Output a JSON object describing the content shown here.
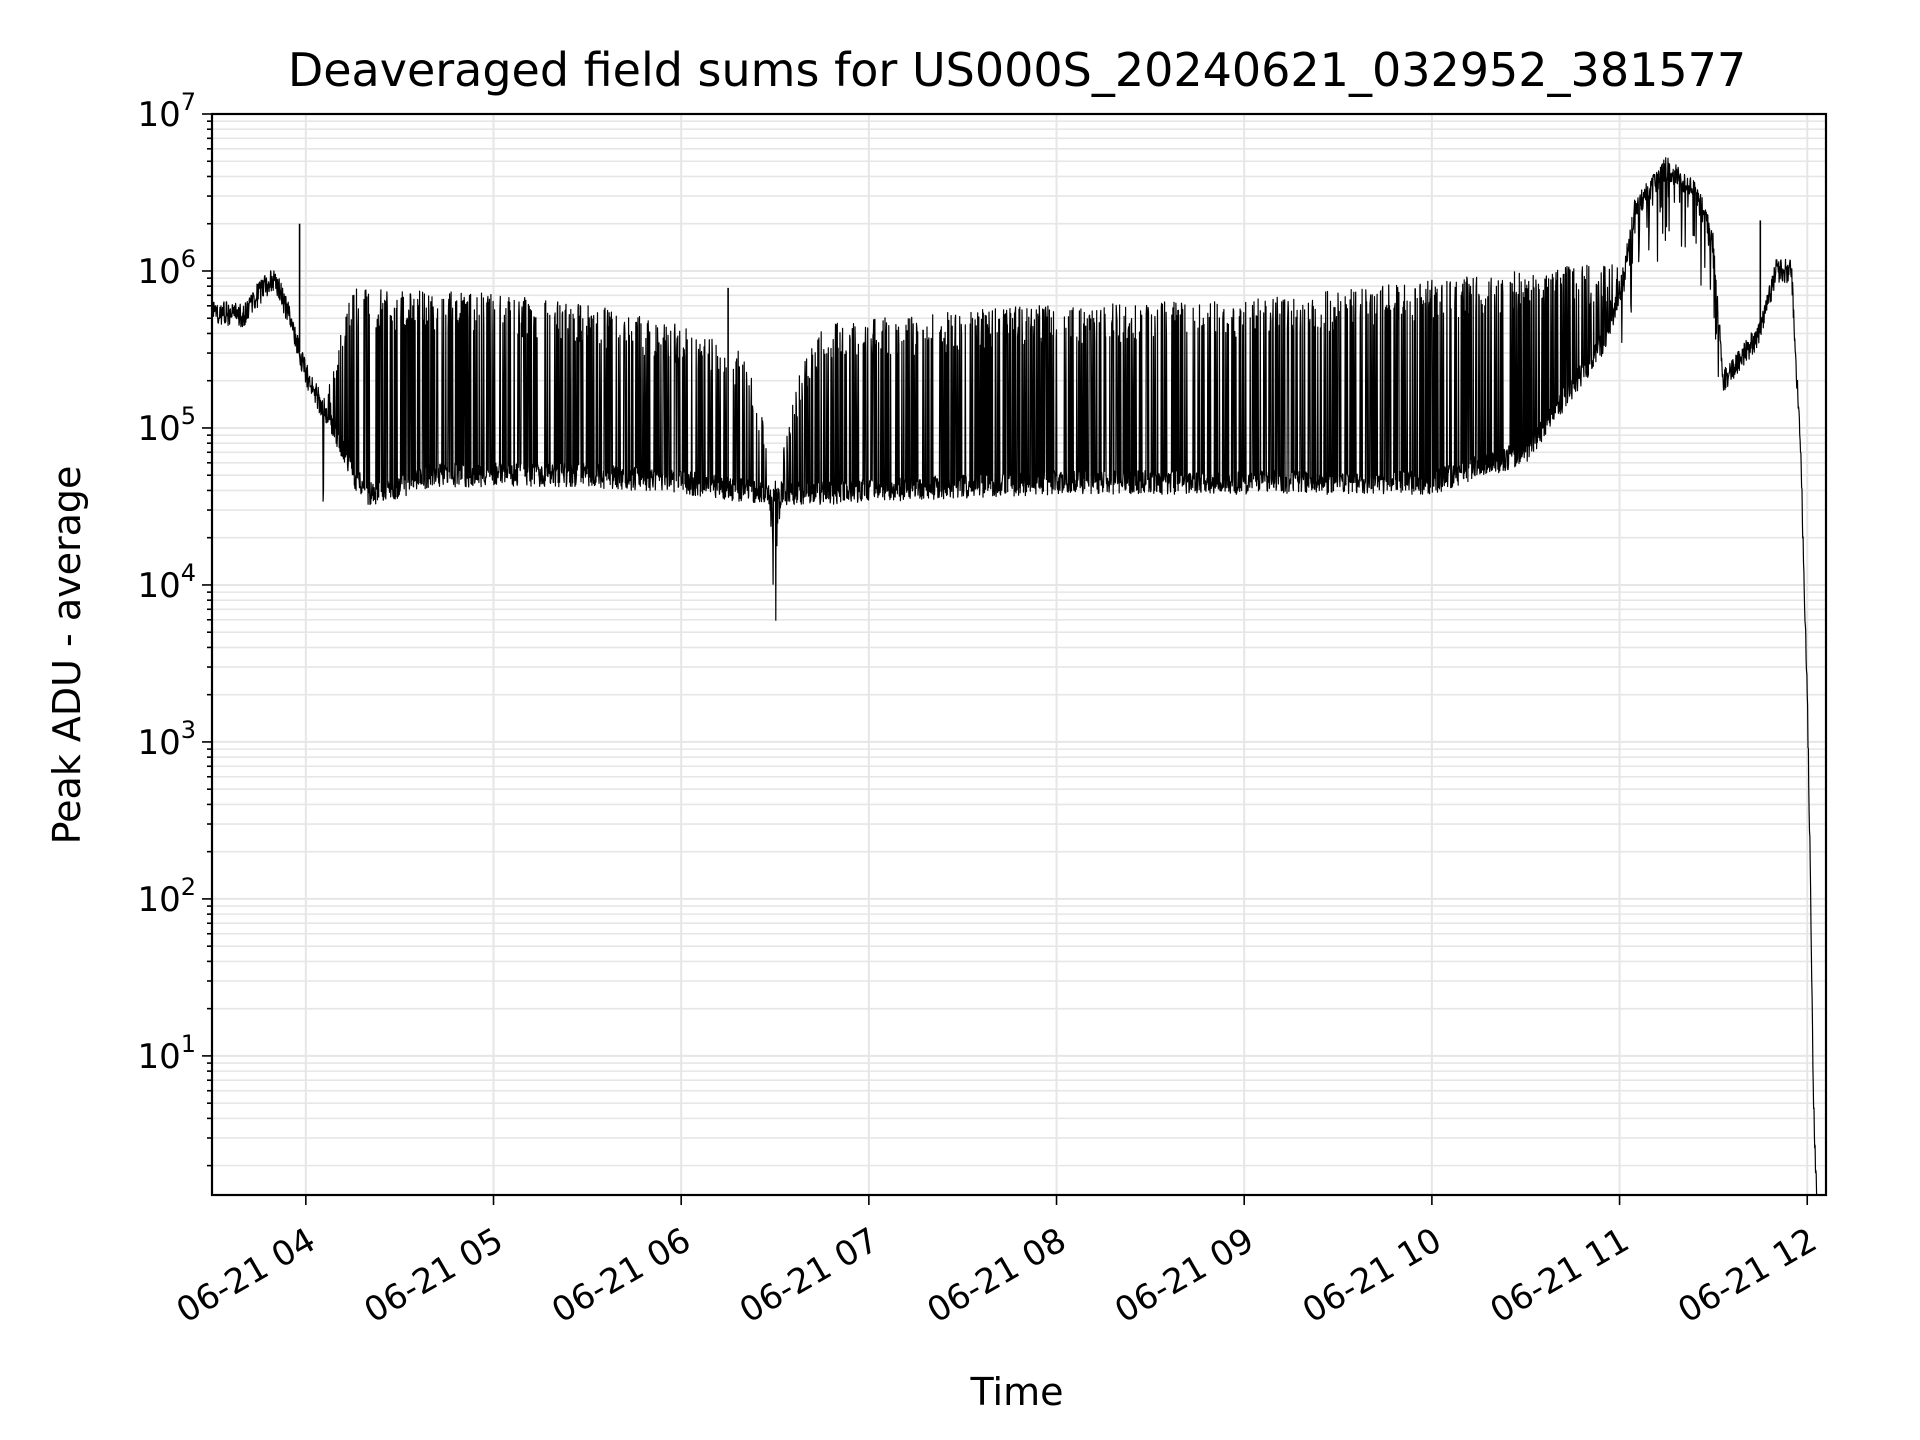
{
  "chart_data": {
    "type": "line",
    "title": "Deaveraged field sums for US000S_20240621_032952_381577",
    "xlabel": "Time",
    "ylabel": "Peak ADU - average",
    "x_scale": "time",
    "y_scale": "log",
    "xlim": [
      "06-21 03:30",
      "06-21 12:06"
    ],
    "ylim": [
      1.3,
      10000000
    ],
    "grid": true,
    "line_color": "#000000",
    "grid_color": "#e6e6e6",
    "x_ticks": [
      {
        "value": "06-21 04:00",
        "label": "06-21 04"
      },
      {
        "value": "06-21 05:00",
        "label": "06-21 05"
      },
      {
        "value": "06-21 06:00",
        "label": "06-21 06"
      },
      {
        "value": "06-21 07:00",
        "label": "06-21 07"
      },
      {
        "value": "06-21 08:00",
        "label": "06-21 08"
      },
      {
        "value": "06-21 09:00",
        "label": "06-21 09"
      },
      {
        "value": "06-21 10:00",
        "label": "06-21 10"
      },
      {
        "value": "06-21 11:00",
        "label": "06-21 11"
      },
      {
        "value": "06-21 12:00",
        "label": "06-21 12"
      }
    ],
    "y_ticks": [
      {
        "value": 10,
        "base": "10",
        "exp": "1"
      },
      {
        "value": 100,
        "base": "10",
        "exp": "2"
      },
      {
        "value": 1000,
        "base": "10",
        "exp": "3"
      },
      {
        "value": 10000,
        "base": "10",
        "exp": "4"
      },
      {
        "value": 100000,
        "base": "10",
        "exp": "5"
      },
      {
        "value": 1000000,
        "base": "10",
        "exp": "6"
      },
      {
        "value": 10000000,
        "base": "10",
        "exp": "7"
      }
    ],
    "series": [
      {
        "baseline": [
          [
            "06-21 03:30",
            550000
          ],
          [
            "06-21 03:40",
            520000
          ],
          [
            "06-21 03:45",
            720000
          ],
          [
            "06-21 03:50",
            900000
          ],
          [
            "06-21 03:55",
            500000
          ],
          [
            "06-21 04:00",
            220000
          ],
          [
            "06-21 04:05",
            140000
          ],
          [
            "06-21 04:10",
            90000
          ],
          [
            "06-21 04:15",
            50000
          ],
          [
            "06-21 04:20",
            38000
          ],
          [
            "06-21 04:30",
            42000
          ],
          [
            "06-21 04:40",
            50000
          ],
          [
            "06-21 05:00",
            50000
          ],
          [
            "06-21 05:30",
            50000
          ],
          [
            "06-21 06:00",
            45000
          ],
          [
            "06-21 06:20",
            40000
          ],
          [
            "06-21 06:40",
            38000
          ],
          [
            "06-21 07:00",
            40000
          ],
          [
            "06-21 08:00",
            45000
          ],
          [
            "06-21 09:00",
            45000
          ],
          [
            "06-21 10:00",
            45000
          ],
          [
            "06-21 10:30",
            70000
          ],
          [
            "06-21 10:55",
            350000
          ],
          [
            "06-21 11:00",
            700000
          ],
          [
            "06-21 11:05",
            2500000
          ],
          [
            "06-21 11:15",
            4500000
          ],
          [
            "06-21 11:25",
            3000000
          ],
          [
            "06-21 11:30",
            1500000
          ],
          [
            "06-21 11:33",
            200000
          ],
          [
            "06-21 11:40",
            300000
          ],
          [
            "06-21 11:45",
            400000
          ],
          [
            "06-21 11:50",
            1000000
          ],
          [
            "06-21 11:55",
            1000000
          ],
          [
            "06-21 11:58",
            60000
          ],
          [
            "06-21 12:00",
            2000
          ],
          [
            "06-21 12:01",
            150
          ],
          [
            "06-21 12:02",
            5
          ],
          [
            "06-21 12:03",
            1.3
          ]
        ],
        "spike_envelope": [
          [
            "06-21 04:05",
            0
          ],
          [
            "06-21 04:15",
            770000
          ],
          [
            "06-21 05:00",
            720000
          ],
          [
            "06-21 05:30",
            620000
          ],
          [
            "06-21 06:00",
            450000
          ],
          [
            "06-21 06:20",
            300000
          ],
          [
            "06-21 06:30",
            0
          ],
          [
            "06-21 06:45",
            450000
          ],
          [
            "06-21 07:00",
            500000
          ],
          [
            "06-21 08:00",
            620000
          ],
          [
            "06-21 09:00",
            650000
          ],
          [
            "06-21 10:00",
            880000
          ],
          [
            "06-21 10:50",
            1100000
          ],
          [
            "06-21 11:00",
            1100000
          ]
        ],
        "isolated_peaks": [
          [
            "06-21 03:58",
            2000000
          ],
          [
            "06-21 11:45",
            2100000
          ],
          [
            "06-21 06:15",
            780000
          ]
        ]
      }
    ]
  }
}
